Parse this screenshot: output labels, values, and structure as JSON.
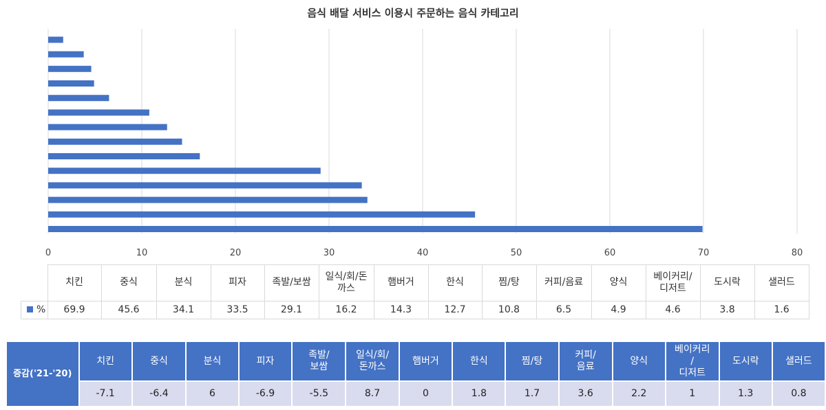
{
  "chart_data": {
    "type": "bar",
    "orientation": "horizontal",
    "title": "음식 배달 서비스 이용시 주문하는 음식 카테고리",
    "categories": [
      "치킨",
      "중식",
      "분식",
      "피자",
      "족발/보쌈",
      "일식/회/돈까스",
      "햄버거",
      "한식",
      "찜/탕",
      "커피/음료",
      "양식",
      "베이커리/디저트",
      "도시락",
      "샐러드"
    ],
    "series": [
      {
        "name": "%",
        "values": [
          69.9,
          45.6,
          34.1,
          33.5,
          29.1,
          16.2,
          14.3,
          12.7,
          10.8,
          6.5,
          4.9,
          4.6,
          3.8,
          1.6
        ],
        "color": "#4472c4"
      }
    ],
    "xlim": [
      0,
      80
    ],
    "xticks": [
      0,
      10,
      20,
      30,
      40,
      50,
      60,
      70,
      80
    ],
    "grid": true,
    "legend": "data-table"
  },
  "table": {
    "headers": [
      "치킨",
      "중식",
      "분식",
      "피자",
      "족발/보쌈",
      "일식/회/돈\n까스",
      "햄버거",
      "한식",
      "찜/탕",
      "커피/음료",
      "양식",
      "베이커리/\n디저트",
      "도시락",
      "샐러드"
    ],
    "series_label": "%",
    "values": [
      "69.9",
      "45.6",
      "34.1",
      "33.5",
      "29.1",
      "16.2",
      "14.3",
      "12.7",
      "10.8",
      "6.5",
      "4.9",
      "4.6",
      "3.8",
      "1.6"
    ]
  },
  "change_table": {
    "label": "증감('21-'20)",
    "headers": [
      "치킨",
      "중식",
      "분식",
      "피자",
      "족발/\n보쌈",
      "일식/회/\n돈까스",
      "햄버거",
      "한식",
      "찜/탕",
      "커피/\n음료",
      "양식",
      "베이커리\n/\n디저트",
      "도시락",
      "샐러드"
    ],
    "values": [
      "-7.1",
      "-6.4",
      "6",
      "-6.9",
      "-5.5",
      "8.7",
      "0",
      "1.8",
      "1.7",
      "3.6",
      "2.2",
      "1",
      "1.3",
      "0.8"
    ]
  }
}
